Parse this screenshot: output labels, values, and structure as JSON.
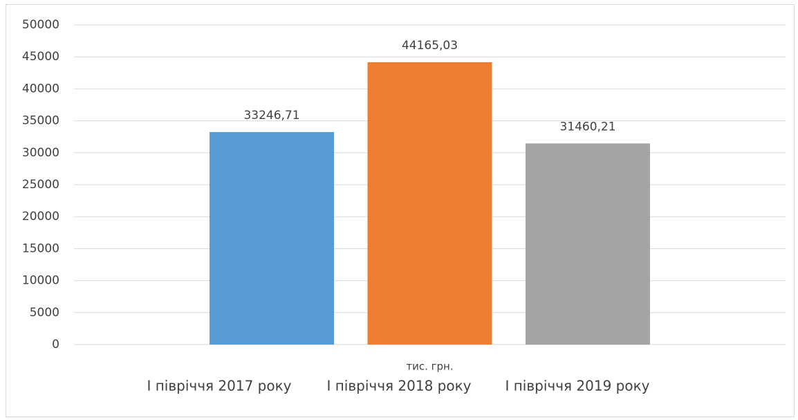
{
  "chart_data": {
    "type": "bar",
    "categories": [
      "тис. грн."
    ],
    "series": [
      {
        "name": "I півріччя 2017 року",
        "color": "#5b9bd5",
        "values": [
          33246.71
        ],
        "value_labels": [
          "33246,71"
        ]
      },
      {
        "name": "I півріччя 2018 року",
        "color": "#ed7d31",
        "values": [
          44165.03
        ],
        "value_labels": [
          "44165,03"
        ]
      },
      {
        "name": "I півріччя 2019 року",
        "color": "#a5a5a5",
        "values": [
          31460.21
        ],
        "value_labels": [
          "31460,21"
        ]
      }
    ],
    "ylim": [
      0,
      50000
    ],
    "yticks": [
      0,
      5000,
      10000,
      15000,
      20000,
      25000,
      30000,
      35000,
      40000,
      45000,
      50000
    ],
    "grid": true,
    "legend": "bottom"
  }
}
